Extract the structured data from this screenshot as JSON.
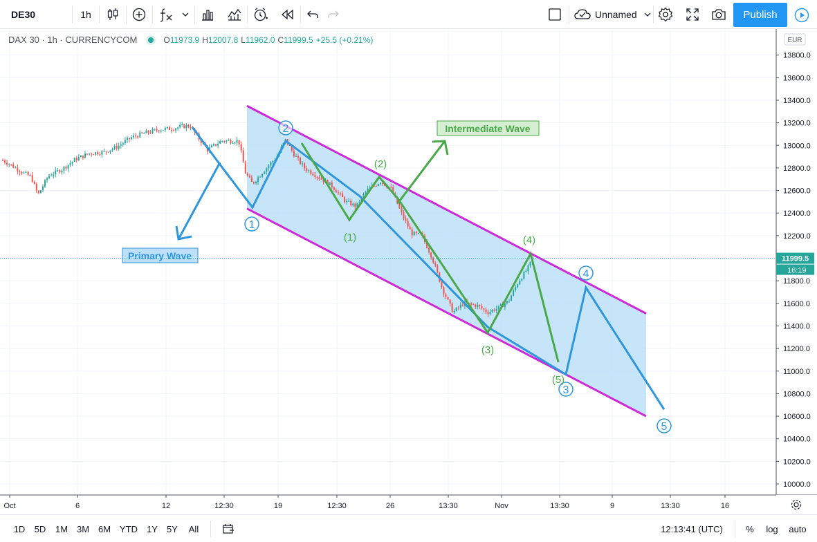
{
  "toolbar": {
    "symbol": "DE30",
    "interval": "1h",
    "layout_name": "Unnamed",
    "publish_label": "Publish",
    "icons": [
      "candles-icon",
      "indicators-plus-icon",
      "fx-icon",
      "chevron-down-icon",
      "compare-icon",
      "bars-compare-icon",
      "alert-icon",
      "replay-icon",
      "undo-icon",
      "redo-icon",
      "checkbox-icon",
      "cloud-icon",
      "gear-icon",
      "fullscreen-icon",
      "camera-icon",
      "play-icon"
    ]
  },
  "legend": {
    "title": "DAX 30 · 1h · CURRENCYCOM",
    "open_label": "O",
    "open": "11973.9",
    "high_label": "H",
    "high": "12007.8",
    "low_label": "L",
    "low": "11962.0",
    "close_label": "C",
    "close": "11999.5",
    "change": "+25.5 (+0.21%)"
  },
  "price_axis": {
    "currency": "EUR",
    "ticks": [
      "13800.0",
      "13600.0",
      "13400.0",
      "13200.0",
      "13000.0",
      "12800.0",
      "12600.0",
      "12400.0",
      "12200.0",
      "12000.0",
      "11800.0",
      "11600.0",
      "11400.0",
      "11200.0",
      "11000.0",
      "10800.0",
      "10600.0",
      "10400.0",
      "10200.0",
      "10000.0"
    ],
    "last_price": "11999.5",
    "countdown": "16:19",
    "last_price_color": "#26a69a"
  },
  "time_axis": {
    "ticks": [
      "Oct",
      "6",
      "12",
      "12:30",
      "19",
      "12:30",
      "26",
      "13:30",
      "Nov",
      "13:30",
      "9",
      "13:30",
      "16"
    ]
  },
  "bottombar": {
    "ranges": [
      "1D",
      "5D",
      "1M",
      "3M",
      "6M",
      "YTD",
      "1Y",
      "5Y",
      "All"
    ],
    "clock": "12:13:41 (UTC)",
    "percent_label": "%",
    "log_label": "log",
    "auto_label": "auto"
  },
  "annotations": {
    "primary_wave_label": "Primary Wave",
    "intermediate_wave_label": "Intermediate Wave",
    "primary_labels": [
      "1",
      "2",
      "3",
      "4",
      "5"
    ],
    "intermediate_labels": [
      "(1)",
      "(2)",
      "(3)",
      "(4)",
      "(5)"
    ],
    "colors": {
      "primary": "#2f96dc",
      "intermediate": "#4aa84a",
      "channel": "#cc2ad6",
      "channel_fill": "#bde0f8",
      "up_candle": "#26a69a",
      "down_candle": "#ef5350"
    }
  },
  "chart_data": {
    "type": "candlestick",
    "instrument": "DAX 30",
    "timeframe": "1h",
    "ylim": [
      9900,
      13900
    ],
    "ohlc_last": {
      "open": 11973.9,
      "high": 12007.8,
      "low": 11962.0,
      "close": 11999.5
    },
    "price_path": [
      [
        0,
        12880
      ],
      [
        15,
        12830
      ],
      [
        30,
        12770
      ],
      [
        45,
        12720
      ],
      [
        55,
        12560
      ],
      [
        70,
        12730
      ],
      [
        90,
        12790
      ],
      [
        110,
        12880
      ],
      [
        130,
        12930
      ],
      [
        150,
        12940
      ],
      [
        170,
        12990
      ],
      [
        190,
        13070
      ],
      [
        210,
        13110
      ],
      [
        230,
        13140
      ],
      [
        250,
        13150
      ],
      [
        265,
        13170
      ],
      [
        275,
        13170
      ],
      [
        285,
        13080
      ],
      [
        300,
        12960
      ],
      [
        320,
        13040
      ],
      [
        345,
        13040
      ],
      [
        355,
        12750
      ],
      [
        365,
        12660
      ],
      [
        385,
        12800
      ],
      [
        400,
        12900
      ],
      [
        413,
        13050
      ],
      [
        425,
        12920
      ],
      [
        440,
        12800
      ],
      [
        460,
        12720
      ],
      [
        480,
        12640
      ],
      [
        500,
        12500
      ],
      [
        515,
        12460
      ],
      [
        530,
        12600
      ],
      [
        550,
        12680
      ],
      [
        565,
        12620
      ],
      [
        580,
        12400
      ],
      [
        595,
        12220
      ],
      [
        610,
        12200
      ],
      [
        625,
        12000
      ],
      [
        640,
        11720
      ],
      [
        655,
        11520
      ],
      [
        670,
        11600
      ],
      [
        690,
        11580
      ],
      [
        705,
        11520
      ],
      [
        720,
        11560
      ],
      [
        735,
        11620
      ],
      [
        750,
        11800
      ],
      [
        762,
        11900
      ],
      [
        770,
        11990
      ]
    ],
    "primary_wave": [
      [
        278,
        13160
      ],
      [
        318,
        12830
      ],
      [
        365,
        12450
      ],
      [
        413,
        13040
      ],
      [
        520,
        12550
      ],
      [
        705,
        11390
      ],
      [
        818,
        10970
      ],
      [
        847,
        11740
      ],
      [
        960,
        10660
      ]
    ],
    "intermediate_wave": [
      [
        436,
        13020
      ],
      [
        505,
        12340
      ],
      [
        548,
        12720
      ],
      [
        575,
        12530
      ],
      [
        705,
        11340
      ],
      [
        767,
        12040
      ],
      [
        807,
        11080
      ]
    ],
    "channel_upper": [
      [
        357,
        13350
      ],
      [
        934,
        11510
      ]
    ],
    "channel_lower": [
      [
        357,
        12440
      ],
      [
        934,
        10600
      ]
    ]
  }
}
